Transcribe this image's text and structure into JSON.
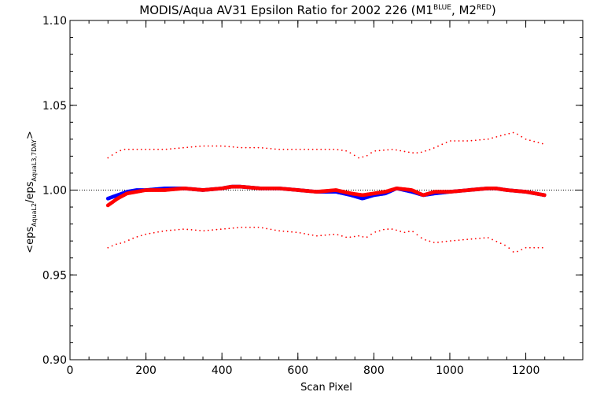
{
  "chart_data": {
    "type": "scatter",
    "title": {
      "main": "MODIS/Aqua AV31 Epsilon Ratio for 2002 226 (M1",
      "sup1": "BLUE",
      "mid": ", M2",
      "sup2": "RED",
      "end": ")"
    },
    "xlabel": "Scan Pixel",
    "ylabel": {
      "open": "<eps",
      "sub1": "AquaL2",
      "mid": "/eps",
      "sub2": "AquaL3,7DAY",
      "close": ">"
    },
    "xlim": [
      0,
      1350
    ],
    "ylim": [
      0.9,
      1.1
    ],
    "xticks": [
      0,
      200,
      400,
      600,
      800,
      1000,
      1200
    ],
    "xtick_labels": [
      "0",
      "200",
      "400",
      "600",
      "800",
      "1000",
      "1200"
    ],
    "yticks": [
      0.9,
      0.95,
      1.0,
      1.05,
      1.1
    ],
    "ytick_labels": [
      "0.90",
      "0.95",
      "1.00",
      "1.05",
      "1.10"
    ],
    "reference_line": 1.0,
    "colors": {
      "m1": "#0000ff",
      "m2": "#ff0000",
      "axis": "#000000"
    },
    "series": [
      {
        "color": "#0000ff",
        "x": [
          100,
          125,
          150,
          175,
          200,
          250,
          300,
          350,
          400,
          425,
          450,
          500,
          550,
          600,
          650,
          700,
          740,
          770,
          800,
          830,
          860,
          900,
          930,
          960,
          1000,
          1050,
          1100,
          1120,
          1150,
          1200,
          1225,
          1250
        ],
        "y": [
          0.995,
          0.997,
          0.999,
          1.0,
          1.0,
          1.001,
          1.001,
          1.0,
          1.001,
          1.002,
          1.002,
          1.001,
          1.001,
          1.0,
          0.999,
          0.999,
          0.997,
          0.995,
          0.997,
          0.998,
          1.001,
          0.999,
          0.997,
          0.998,
          0.999,
          1.0,
          1.001,
          1.001,
          1.0,
          0.999,
          0.998,
          0.997
        ]
      },
      {
        "color": "#ff0000",
        "x": [
          100,
          125,
          150,
          175,
          200,
          250,
          300,
          350,
          400,
          425,
          450,
          500,
          550,
          600,
          650,
          700,
          740,
          770,
          800,
          830,
          860,
          900,
          930,
          960,
          1000,
          1050,
          1100,
          1120,
          1150,
          1200,
          1225,
          1250
        ],
        "y": [
          0.991,
          0.995,
          0.998,
          0.999,
          1.0,
          1.0,
          1.001,
          1.0,
          1.001,
          1.002,
          1.002,
          1.001,
          1.001,
          1.0,
          0.999,
          1.0,
          0.998,
          0.997,
          0.998,
          0.999,
          1.001,
          1.0,
          0.997,
          0.999,
          0.999,
          1.0,
          1.001,
          1.001,
          1.0,
          0.999,
          0.998,
          0.997
        ]
      },
      {
        "color": "#ff0000",
        "x": [
          100,
          120,
          140,
          170,
          200,
          250,
          300,
          350,
          400,
          450,
          500,
          550,
          600,
          650,
          700,
          730,
          760,
          780,
          800,
          850,
          900,
          920,
          950,
          1000,
          1050,
          1100,
          1150,
          1170,
          1200,
          1250
        ],
        "y": [
          1.019,
          1.022,
          1.024,
          1.024,
          1.024,
          1.024,
          1.025,
          1.026,
          1.026,
          1.025,
          1.025,
          1.024,
          1.024,
          1.024,
          1.024,
          1.023,
          1.019,
          1.02,
          1.023,
          1.024,
          1.022,
          1.022,
          1.024,
          1.029,
          1.029,
          1.03,
          1.033,
          1.034,
          1.03,
          1.027
        ]
      },
      {
        "color": "#ff0000",
        "x": [
          100,
          120,
          140,
          170,
          200,
          250,
          300,
          350,
          400,
          450,
          500,
          550,
          600,
          650,
          700,
          730,
          760,
          780,
          800,
          830,
          850,
          880,
          900,
          930,
          960,
          1000,
          1050,
          1100,
          1150,
          1170,
          1200,
          1250
        ],
        "y": [
          0.966,
          0.968,
          0.969,
          0.972,
          0.974,
          0.976,
          0.977,
          0.976,
          0.977,
          0.978,
          0.978,
          0.976,
          0.975,
          0.973,
          0.974,
          0.972,
          0.973,
          0.972,
          0.975,
          0.977,
          0.977,
          0.975,
          0.976,
          0.971,
          0.969,
          0.97,
          0.971,
          0.972,
          0.967,
          0.963,
          0.966,
          0.966
        ]
      }
    ]
  }
}
